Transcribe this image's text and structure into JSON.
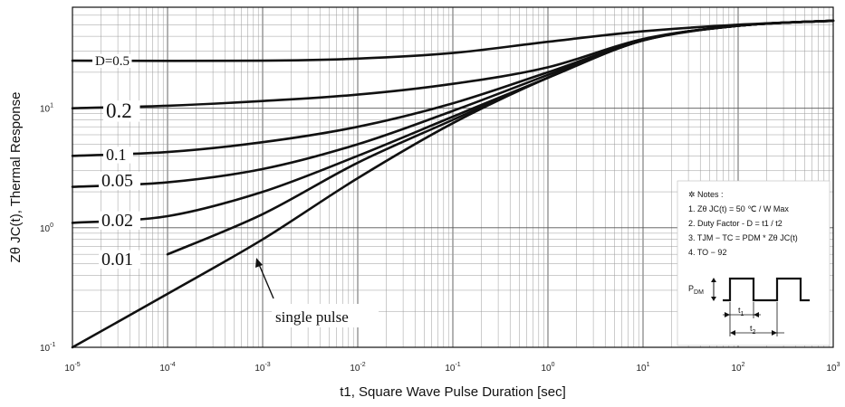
{
  "chart_data": {
    "type": "line",
    "title": "",
    "xlabel": "t1, Square Wave Pulse Duration [sec]",
    "ylabel": "Zθ JC(t), Thermal Response",
    "xscale": "log",
    "yscale": "log",
    "xlim": [
      1e-05,
      1000
    ],
    "ylim": [
      0.1,
      70
    ],
    "grid": true,
    "x_ticks": [
      {
        "value": 1e-05,
        "base": "10",
        "exp": "-5"
      },
      {
        "value": 0.0001,
        "base": "10",
        "exp": "-4"
      },
      {
        "value": 0.001,
        "base": "10",
        "exp": "-3"
      },
      {
        "value": 0.01,
        "base": "10",
        "exp": "-2"
      },
      {
        "value": 0.1,
        "base": "10",
        "exp": "-1"
      },
      {
        "value": 1,
        "base": "10",
        "exp": "0"
      },
      {
        "value": 10,
        "base": "10",
        "exp": "1"
      },
      {
        "value": 100,
        "base": "10",
        "exp": "2"
      },
      {
        "value": 1000,
        "base": "10",
        "exp": "3"
      }
    ],
    "y_ticks": [
      {
        "value": 0.1,
        "base": "10",
        "exp": "-1"
      },
      {
        "value": 1,
        "base": "10",
        "exp": "0"
      },
      {
        "value": 10,
        "base": "10",
        "exp": "1"
      }
    ],
    "series": [
      {
        "name": "D=0.5",
        "x": [
          1e-05,
          0.001,
          0.01,
          0.1,
          1,
          10,
          100,
          1000
        ],
        "y": [
          25,
          25,
          26,
          29,
          36,
          44,
          50,
          54
        ]
      },
      {
        "name": "0.2",
        "x": [
          1e-05,
          0.0001,
          0.001,
          0.01,
          0.1,
          1,
          10,
          100,
          1000
        ],
        "y": [
          10,
          10.5,
          11.5,
          13,
          16,
          22,
          38,
          49,
          54
        ]
      },
      {
        "name": "0.1",
        "x": [
          1e-05,
          0.0001,
          0.001,
          0.01,
          0.1,
          1,
          10,
          100,
          1000
        ],
        "y": [
          4,
          4.3,
          5.2,
          7,
          11,
          20,
          37,
          49,
          54
        ]
      },
      {
        "name": "0.05",
        "x": [
          1e-05,
          0.0001,
          0.001,
          0.01,
          0.1,
          1,
          10,
          100,
          1000
        ],
        "y": [
          2.2,
          2.4,
          3.1,
          5,
          9.5,
          19,
          37,
          49,
          54
        ]
      },
      {
        "name": "0.02",
        "x": [
          1e-05,
          0.0001,
          0.001,
          0.01,
          0.1,
          1,
          10,
          100,
          1000
        ],
        "y": [
          1.1,
          1.25,
          2,
          4,
          8.5,
          18,
          37,
          49,
          54
        ]
      },
      {
        "name": "0.01",
        "x": [
          0.0001,
          0.001,
          0.01,
          0.1,
          1,
          10,
          100,
          1000
        ],
        "y": [
          0.6,
          1.3,
          3.5,
          8,
          18,
          37,
          49,
          54
        ]
      },
      {
        "name": "single pulse",
        "x": [
          1e-05,
          0.0001,
          0.001,
          0.01,
          0.1,
          1,
          10,
          100,
          1000
        ],
        "y": [
          0.1,
          0.28,
          0.8,
          2.6,
          7.5,
          18,
          37,
          49,
          54
        ]
      }
    ],
    "annotation": "single pulse",
    "notes": {
      "header": "Notes :",
      "items": [
        {
          "num": "1.",
          "text": "Zθ JC(t) = 50 ℃ / W Max"
        },
        {
          "num": "2.",
          "text": "Duty Factor - D = t1 / t2"
        },
        {
          "num": "3.",
          "text": "TJM − TC = PDM * Zθ JC(t)"
        },
        {
          "num": "4.",
          "text": "TO − 92"
        }
      ],
      "pdm_label": "PDM",
      "t1_label": "t1",
      "t2_label": "t2"
    }
  }
}
